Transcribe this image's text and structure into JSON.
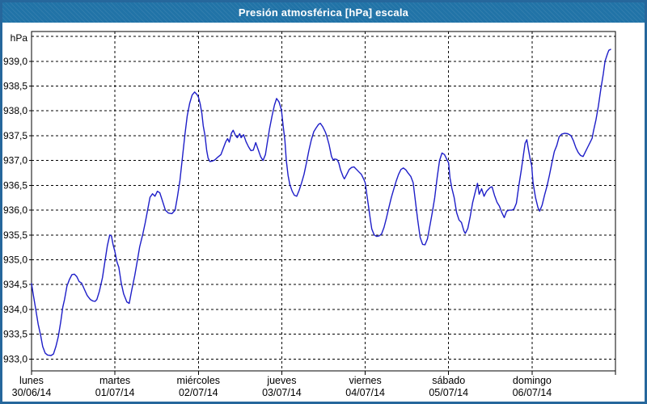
{
  "window": {
    "title": "Presión atmosférica [hPa] escala"
  },
  "colors": {
    "titlebar_bg": "#2173a7",
    "panel_border": "#26679c",
    "line": "#1e1ec8",
    "grid": "#000000",
    "text": "#000000",
    "background": "#ffffff"
  },
  "y_axis": {
    "unit_label": "hPa",
    "top_value": 939.6,
    "bottom_value": 932.76,
    "grid_values": [
      939.5,
      939.0,
      938.5,
      938.0,
      937.5,
      937.0,
      936.5,
      936.0,
      935.5,
      935.0,
      934.5,
      934.0,
      933.5,
      933.0
    ],
    "ticks": [
      {
        "label": "939,0",
        "value": 939.0
      },
      {
        "label": "938,5",
        "value": 938.5
      },
      {
        "label": "938,0",
        "value": 938.0
      },
      {
        "label": "937,5",
        "value": 937.5
      },
      {
        "label": "937,0",
        "value": 937.0
      },
      {
        "label": "936,5",
        "value": 936.5
      },
      {
        "label": "936,0",
        "value": 936.0
      },
      {
        "label": "935,5",
        "value": 935.5
      },
      {
        "label": "935,0",
        "value": 935.0
      },
      {
        "label": "934,5",
        "value": 934.5
      },
      {
        "label": "934,0",
        "value": 934.0
      },
      {
        "label": "933,5",
        "value": 933.5
      },
      {
        "label": "933,0",
        "value": 933.0
      }
    ]
  },
  "x_axis": {
    "days": [
      {
        "name": "lunes",
        "date": "30/06/14"
      },
      {
        "name": "martes",
        "date": "01/07/14"
      },
      {
        "name": "miércoles",
        "date": "02/07/14"
      },
      {
        "name": "jueves",
        "date": "03/07/14"
      },
      {
        "name": "viernes",
        "date": "04/07/14"
      },
      {
        "name": "sábado",
        "date": "05/07/14"
      },
      {
        "name": "domingo",
        "date": "06/07/14"
      }
    ]
  },
  "chart_data": {
    "type": "line",
    "title": "Presión atmosférica [hPa] escala",
    "xlabel": "",
    "ylabel": "hPa",
    "ylim": [
      932.76,
      939.6
    ],
    "x_unit": "hours since lunes 30/06/14 00:00",
    "x_range_hours": [
      0,
      168
    ],
    "grid": "dashed",
    "legend": "none",
    "points": [
      [
        0,
        934.52
      ],
      [
        0.5,
        934.3
      ],
      [
        1.2,
        934.0
      ],
      [
        1.9,
        933.7
      ],
      [
        2.6,
        933.48
      ],
      [
        3.2,
        933.25
      ],
      [
        3.9,
        933.12
      ],
      [
        4.6,
        933.08
      ],
      [
        5.6,
        933.07
      ],
      [
        6.3,
        933.1
      ],
      [
        7,
        933.25
      ],
      [
        7.7,
        933.45
      ],
      [
        8.4,
        933.75
      ],
      [
        9,
        934.05
      ],
      [
        9.5,
        934.2
      ],
      [
        10.2,
        934.47
      ],
      [
        10.9,
        934.6
      ],
      [
        11.6,
        934.7
      ],
      [
        12.3,
        934.71
      ],
      [
        13,
        934.66
      ],
      [
        13.7,
        934.56
      ],
      [
        14.4,
        934.53
      ],
      [
        15.1,
        934.42
      ],
      [
        16,
        934.28
      ],
      [
        16.9,
        934.2
      ],
      [
        17.6,
        934.17
      ],
      [
        18.3,
        934.16
      ],
      [
        18.8,
        934.2
      ],
      [
        19.5,
        934.36
      ],
      [
        20.4,
        934.64
      ],
      [
        21.1,
        934.96
      ],
      [
        21.8,
        935.28
      ],
      [
        22.5,
        935.5
      ],
      [
        23,
        935.48
      ],
      [
        23.4,
        935.32
      ],
      [
        24,
        935.16
      ],
      [
        24.6,
        934.95
      ],
      [
        25.1,
        934.85
      ],
      [
        25.8,
        934.53
      ],
      [
        26.5,
        934.31
      ],
      [
        27.4,
        934.15
      ],
      [
        28.1,
        934.12
      ],
      [
        28.8,
        934.38
      ],
      [
        29.7,
        934.68
      ],
      [
        30.4,
        934.96
      ],
      [
        31.1,
        935.26
      ],
      [
        32,
        935.51
      ],
      [
        32.7,
        935.74
      ],
      [
        33.4,
        936.0
      ],
      [
        34.1,
        936.26
      ],
      [
        34.8,
        936.33
      ],
      [
        35.5,
        936.28
      ],
      [
        36.2,
        936.38
      ],
      [
        36.9,
        936.35
      ],
      [
        37.6,
        936.2
      ],
      [
        38.5,
        936.0
      ],
      [
        39.4,
        935.94
      ],
      [
        40.4,
        935.93
      ],
      [
        41.3,
        936.0
      ],
      [
        42,
        936.28
      ],
      [
        42.7,
        936.6
      ],
      [
        43.4,
        937.05
      ],
      [
        44.1,
        937.5
      ],
      [
        44.8,
        937.9
      ],
      [
        45.5,
        938.15
      ],
      [
        46.2,
        938.32
      ],
      [
        46.9,
        938.38
      ],
      [
        47.6,
        938.33
      ],
      [
        48,
        938.28
      ],
      [
        48.5,
        938.15
      ],
      [
        49,
        937.95
      ],
      [
        49.4,
        937.7
      ],
      [
        49.9,
        937.5
      ],
      [
        50.4,
        937.2
      ],
      [
        50.8,
        937.05
      ],
      [
        51.3,
        936.98
      ],
      [
        52,
        936.99
      ],
      [
        52.7,
        937.01
      ],
      [
        53.6,
        937.07
      ],
      [
        54.5,
        937.12
      ],
      [
        55.2,
        937.25
      ],
      [
        55.9,
        937.38
      ],
      [
        56.4,
        937.44
      ],
      [
        56.9,
        937.37
      ],
      [
        57.5,
        937.55
      ],
      [
        58,
        937.61
      ],
      [
        58.7,
        937.5
      ],
      [
        59.2,
        937.46
      ],
      [
        59.9,
        937.54
      ],
      [
        60.3,
        937.46
      ],
      [
        61,
        937.52
      ],
      [
        61.7,
        937.38
      ],
      [
        62.4,
        937.28
      ],
      [
        63.1,
        937.2
      ],
      [
        63.8,
        937.21
      ],
      [
        64.5,
        937.36
      ],
      [
        65.2,
        937.22
      ],
      [
        65.9,
        937.08
      ],
      [
        66.6,
        937.0
      ],
      [
        67.3,
        937.12
      ],
      [
        67.8,
        937.35
      ],
      [
        68.5,
        937.65
      ],
      [
        69.2,
        937.9
      ],
      [
        69.9,
        938.12
      ],
      [
        70.5,
        938.25
      ],
      [
        71.2,
        938.18
      ],
      [
        71.9,
        938.02
      ],
      [
        72.4,
        937.7
      ],
      [
        72.9,
        937.4
      ],
      [
        73.3,
        937.0
      ],
      [
        73.8,
        936.7
      ],
      [
        74.3,
        936.52
      ],
      [
        75,
        936.38
      ],
      [
        75.6,
        936.3
      ],
      [
        76.3,
        936.28
      ],
      [
        77,
        936.4
      ],
      [
        77.7,
        936.55
      ],
      [
        78.4,
        936.72
      ],
      [
        79.1,
        936.95
      ],
      [
        79.8,
        937.2
      ],
      [
        80.5,
        937.42
      ],
      [
        81.2,
        937.58
      ],
      [
        81.9,
        937.66
      ],
      [
        82.6,
        937.73
      ],
      [
        83.1,
        937.75
      ],
      [
        83.8,
        937.68
      ],
      [
        84.5,
        937.58
      ],
      [
        84.9,
        937.5
      ],
      [
        85.6,
        937.32
      ],
      [
        86.3,
        937.08
      ],
      [
        86.8,
        937.01
      ],
      [
        87.2,
        937.03
      ],
      [
        87.9,
        937.02
      ],
      [
        88.4,
        936.95
      ],
      [
        88.9,
        936.81
      ],
      [
        89.6,
        936.68
      ],
      [
        90,
        936.63
      ],
      [
        90.7,
        936.72
      ],
      [
        91.4,
        936.82
      ],
      [
        92.1,
        936.86
      ],
      [
        92.8,
        936.87
      ],
      [
        93.5,
        936.82
      ],
      [
        94.2,
        936.77
      ],
      [
        94.9,
        936.72
      ],
      [
        95.6,
        936.62
      ],
      [
        96,
        936.55
      ],
      [
        96.5,
        936.3
      ],
      [
        97,
        936.05
      ],
      [
        97.5,
        935.8
      ],
      [
        97.9,
        935.62
      ],
      [
        98.6,
        935.5
      ],
      [
        99.3,
        935.47
      ],
      [
        100,
        935.48
      ],
      [
        100.7,
        935.52
      ],
      [
        101.4,
        935.65
      ],
      [
        102.1,
        935.84
      ],
      [
        102.8,
        936.05
      ],
      [
        103.5,
        936.25
      ],
      [
        104.2,
        936.42
      ],
      [
        104.9,
        936.58
      ],
      [
        105.6,
        936.72
      ],
      [
        106.3,
        936.82
      ],
      [
        107,
        936.85
      ],
      [
        107.7,
        936.81
      ],
      [
        108.4,
        936.74
      ],
      [
        109.1,
        936.68
      ],
      [
        109.8,
        936.55
      ],
      [
        110.4,
        936.2
      ],
      [
        111.1,
        935.8
      ],
      [
        111.8,
        935.45
      ],
      [
        112.5,
        935.31
      ],
      [
        113.2,
        935.3
      ],
      [
        113.9,
        935.42
      ],
      [
        114.6,
        935.68
      ],
      [
        115.3,
        935.95
      ],
      [
        116,
        936.25
      ],
      [
        116.7,
        936.65
      ],
      [
        117.4,
        937.0
      ],
      [
        118.1,
        937.15
      ],
      [
        118.8,
        937.12
      ],
      [
        119.5,
        937.02
      ],
      [
        120,
        936.95
      ],
      [
        120.4,
        936.65
      ],
      [
        120.9,
        936.45
      ],
      [
        121.6,
        936.25
      ],
      [
        122.3,
        935.95
      ],
      [
        123,
        935.8
      ],
      [
        123.7,
        935.75
      ],
      [
        124.4,
        935.58
      ],
      [
        124.8,
        935.53
      ],
      [
        125.5,
        935.63
      ],
      [
        126.2,
        935.87
      ],
      [
        126.9,
        936.15
      ],
      [
        127.6,
        936.35
      ],
      [
        128.3,
        936.54
      ],
      [
        128.8,
        936.32
      ],
      [
        129.5,
        936.43
      ],
      [
        130.2,
        936.28
      ],
      [
        130.9,
        936.38
      ],
      [
        131.3,
        936.41
      ],
      [
        132,
        936.46
      ],
      [
        132.5,
        936.47
      ],
      [
        133.2,
        936.3
      ],
      [
        133.9,
        936.16
      ],
      [
        134.6,
        936.08
      ],
      [
        135.3,
        935.95
      ],
      [
        136,
        935.85
      ],
      [
        136.7,
        935.98
      ],
      [
        137.4,
        936.0
      ],
      [
        138.1,
        936.0
      ],
      [
        138.8,
        936.02
      ],
      [
        139.5,
        936.14
      ],
      [
        140.2,
        936.49
      ],
      [
        140.9,
        936.8
      ],
      [
        141.5,
        937.1
      ],
      [
        142,
        937.35
      ],
      [
        142.5,
        937.42
      ],
      [
        142.9,
        937.25
      ],
      [
        143.4,
        937.05
      ],
      [
        143.9,
        936.9
      ],
      [
        144.3,
        936.55
      ],
      [
        145,
        936.25
      ],
      [
        145.7,
        936.05
      ],
      [
        146.2,
        935.98
      ],
      [
        146.9,
        936.1
      ],
      [
        147.6,
        936.3
      ],
      [
        148.3,
        936.48
      ],
      [
        149,
        936.7
      ],
      [
        149.7,
        936.95
      ],
      [
        150.4,
        937.18
      ],
      [
        151.1,
        937.3
      ],
      [
        151.8,
        937.48
      ],
      [
        152.5,
        937.53
      ],
      [
        153.4,
        937.55
      ],
      [
        154.3,
        937.54
      ],
      [
        155.2,
        937.5
      ],
      [
        155.9,
        937.4
      ],
      [
        156.6,
        937.26
      ],
      [
        157.3,
        937.16
      ],
      [
        158,
        937.1
      ],
      [
        158.7,
        937.08
      ],
      [
        159.4,
        937.18
      ],
      [
        160.1,
        937.28
      ],
      [
        160.8,
        937.38
      ],
      [
        161.3,
        937.45
      ],
      [
        161.7,
        937.6
      ],
      [
        162.4,
        937.82
      ],
      [
        163.1,
        938.1
      ],
      [
        163.8,
        938.45
      ],
      [
        164.5,
        938.75
      ],
      [
        165,
        939.0
      ],
      [
        165.7,
        939.15
      ],
      [
        166.1,
        939.22
      ],
      [
        166.6,
        939.24
      ]
    ]
  }
}
